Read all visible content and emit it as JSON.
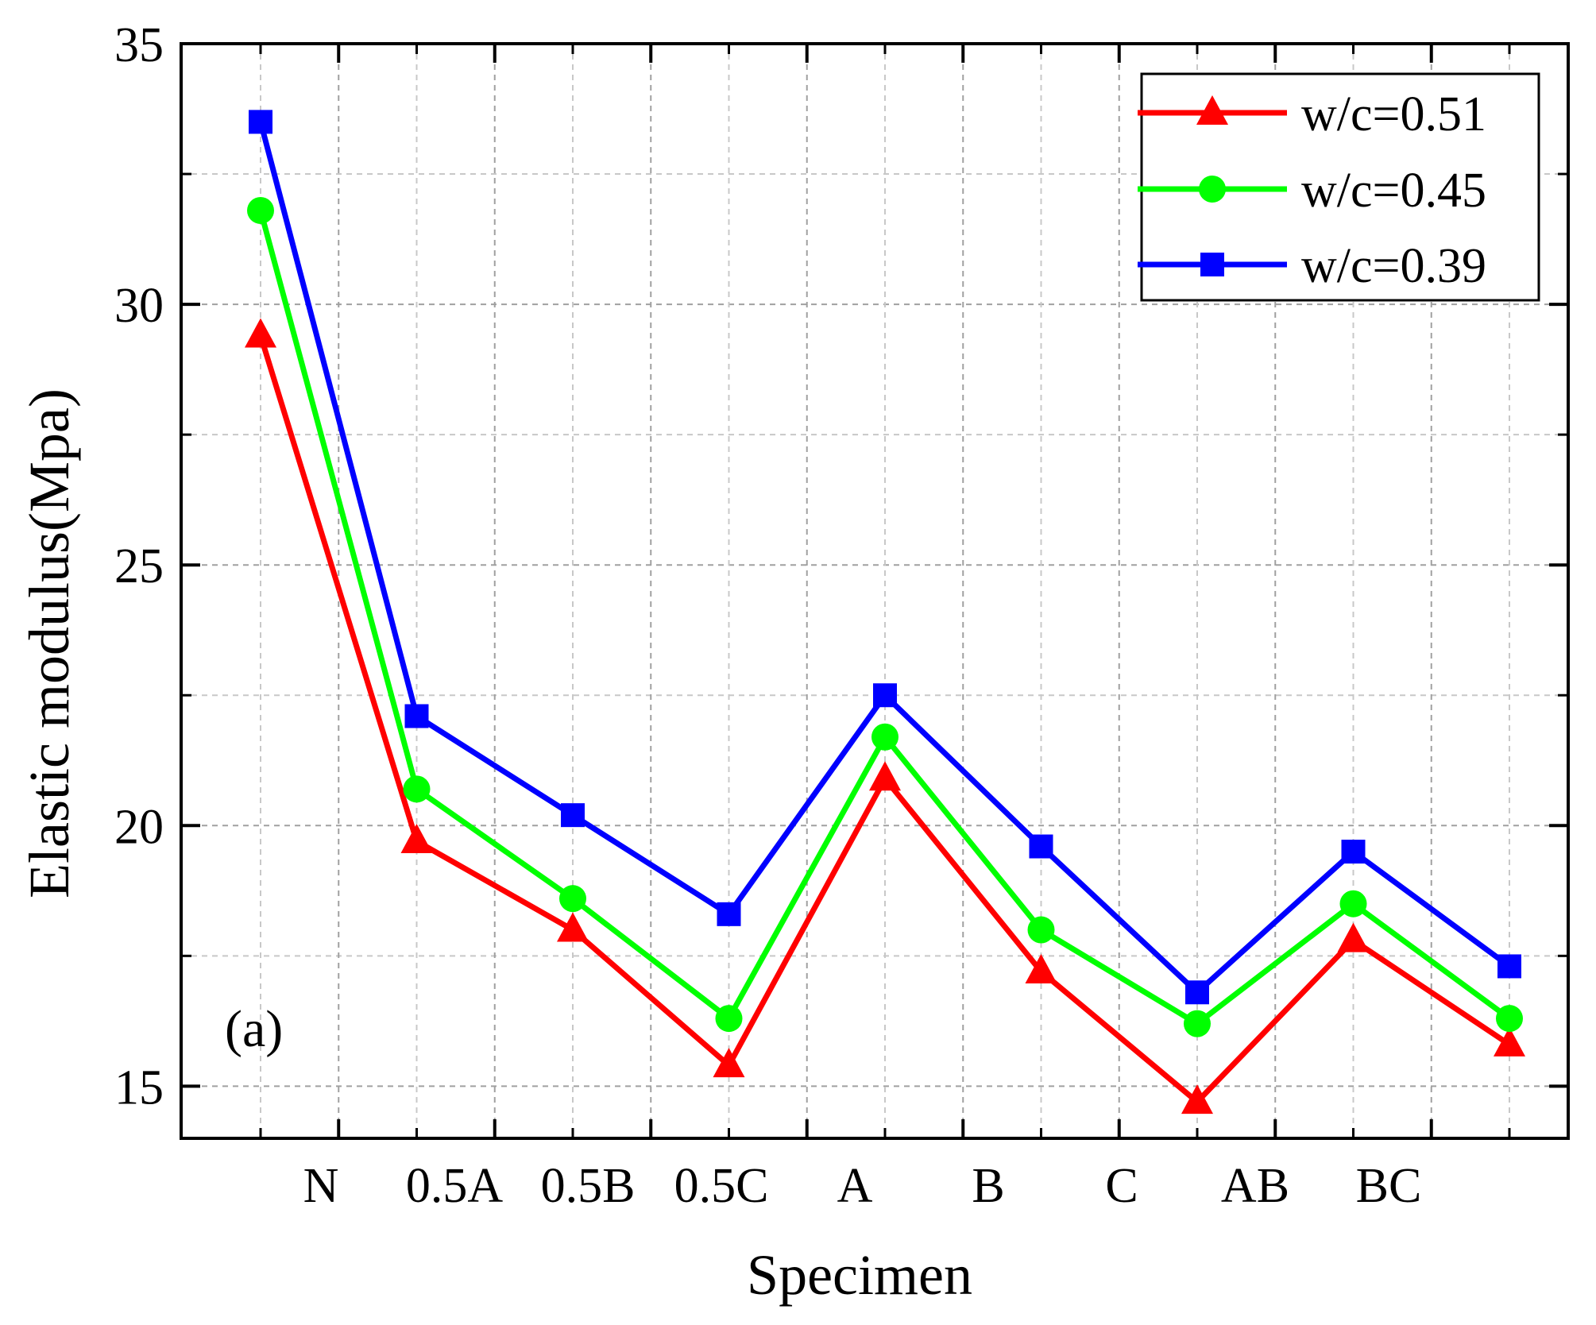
{
  "chart_data": {
    "type": "line",
    "title": "",
    "xlabel": "Specimen",
    "ylabel": "Elastic modulus(Mpa)",
    "ylim": [
      14,
      35
    ],
    "yticks": [
      15,
      20,
      25,
      30,
      35
    ],
    "grid": true,
    "legend_position": "top-right",
    "panel_label": "(a)",
    "categories": [
      "N",
      "0.5A",
      "0.5B",
      "0.5C",
      "A",
      "B",
      "C",
      "AB",
      "BC"
    ],
    "series": [
      {
        "name": "w/c=0.51",
        "color": "#ff0000",
        "marker": "triangle",
        "values": [
          29.4,
          19.7,
          18.0,
          15.4,
          20.9,
          17.2,
          14.7,
          17.8,
          15.8
        ]
      },
      {
        "name": "w/c=0.45",
        "color": "#00ff00",
        "marker": "circle",
        "values": [
          31.8,
          20.7,
          18.6,
          16.3,
          21.7,
          18.0,
          16.2,
          18.5,
          16.3
        ]
      },
      {
        "name": "w/c=0.39",
        "color": "#0000ff",
        "marker": "square",
        "values": [
          33.5,
          22.1,
          20.2,
          18.3,
          22.5,
          19.6,
          16.8,
          19.5,
          17.3
        ]
      }
    ]
  }
}
